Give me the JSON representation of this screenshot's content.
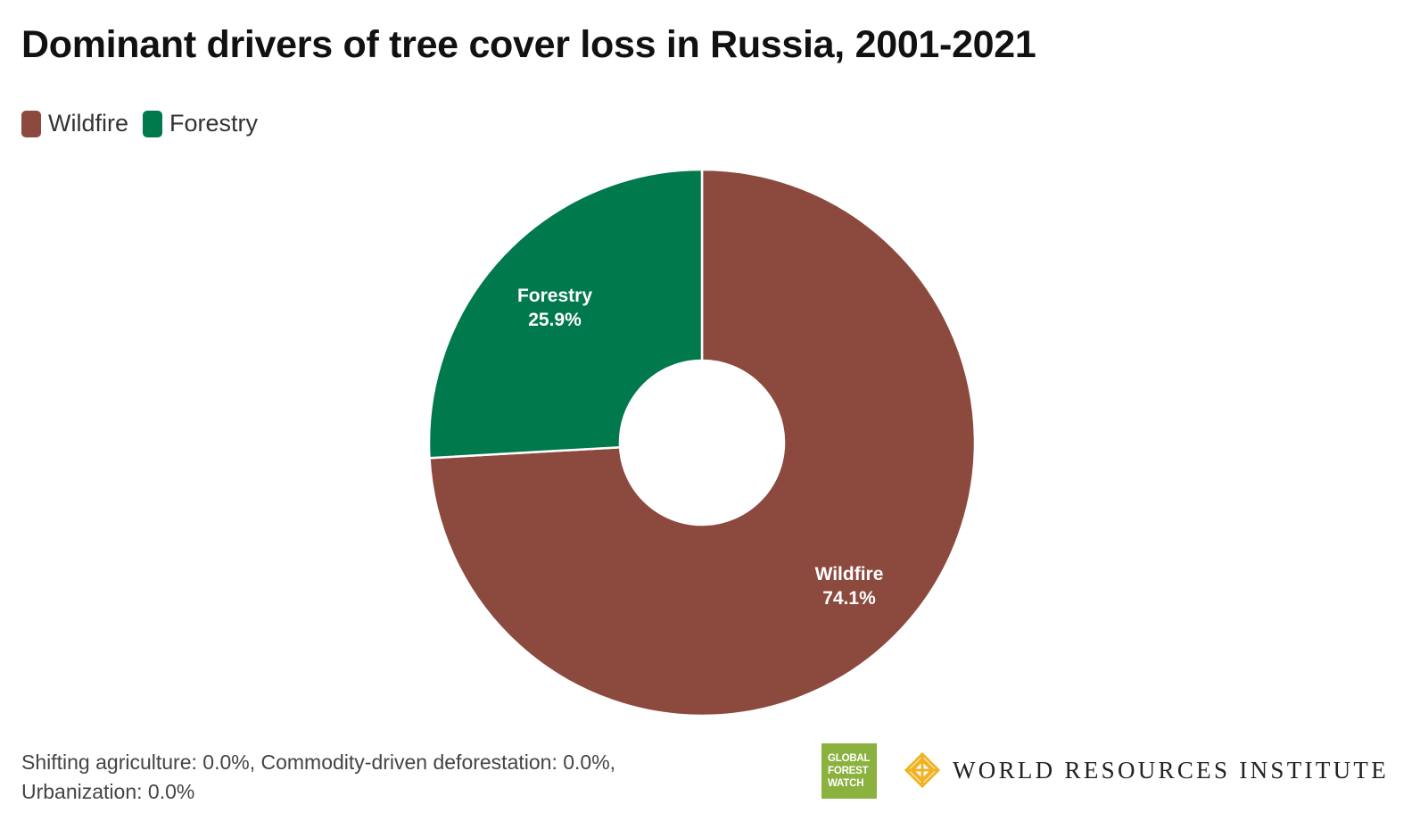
{
  "title": "Dominant drivers of tree cover loss in Russia, 2001-2021",
  "legend": [
    {
      "label": "Wildfire",
      "color": "#8c4a3f"
    },
    {
      "label": "Forestry",
      "color": "#00794d"
    }
  ],
  "chart_data": {
    "type": "pie",
    "donut": true,
    "title": "Dominant drivers of tree cover loss in Russia, 2001-2021",
    "legend_position": "top-left",
    "slices": [
      {
        "label": "Wildfire",
        "value": 74.1,
        "value_label": "74.1%",
        "color": "#8c4a3f"
      },
      {
        "label": "Forestry",
        "value": 25.9,
        "value_label": "25.9%",
        "color": "#00794d"
      }
    ]
  },
  "footnote": {
    "line1": "Shifting agriculture: 0.0%, Commodity-driven deforestation: 0.0%,",
    "line2": "Urbanization: 0.0%"
  },
  "logos": {
    "gfw": {
      "line1": "GLOBAL",
      "line2": "FOREST",
      "line3": "WATCH",
      "color": "#8bb23f",
      "icon": "global-forest-watch-logo"
    },
    "wri": {
      "text": "WORLD RESOURCES INSTITUTE",
      "icon": "wri-logo-mark",
      "mark_color": "#f0b323"
    }
  }
}
